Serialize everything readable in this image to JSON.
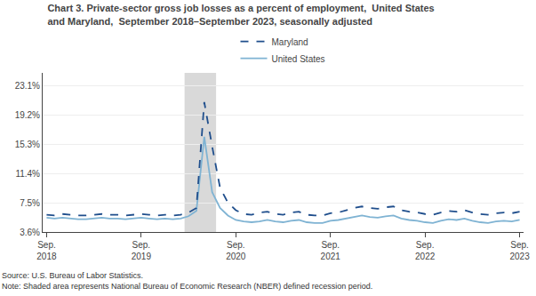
{
  "chart_data": {
    "type": "line",
    "title": "Chart 3. Private-sector gross job losses as a percent of employment,  United States\nand Maryland,  September 2018–September 2023, seasonally adjusted",
    "annotations": [
      "Source: U.S. Bureau of Labor Statistics.",
      "Note: Shaded area represents National Bureau of Economic Research (NBER) defined recession period."
    ],
    "categories": [
      "Sep.\n2018",
      null,
      null,
      null,
      null,
      null,
      null,
      null,
      null,
      null,
      null,
      null,
      "Sep.\n2019",
      null,
      null,
      null,
      null,
      null,
      null,
      null,
      null,
      null,
      null,
      null,
      "Sep.\n2020",
      null,
      null,
      null,
      null,
      null,
      null,
      null,
      null,
      null,
      null,
      null,
      "Sep.\n2021",
      null,
      null,
      null,
      null,
      null,
      null,
      null,
      null,
      null,
      null,
      null,
      "Sep.\n2022",
      null,
      null,
      null,
      null,
      null,
      null,
      null,
      null,
      null,
      null,
      null,
      "Sep.\n2023"
    ],
    "xlim": [
      -0.5,
      60.5
    ],
    "series": [
      {
        "name": "United States",
        "color": "#7fb3d3",
        "line_style": "solid",
        "values": [
          5.5,
          5.4,
          5.5,
          5.4,
          5.3,
          5.3,
          5.4,
          5.5,
          5.4,
          5.4,
          5.3,
          5.4,
          5.5,
          5.4,
          5.3,
          5.4,
          5.3,
          5.4,
          5.7,
          6.4,
          16.3,
          8.9,
          6.8,
          5.8,
          5.2,
          5.0,
          4.9,
          5.0,
          5.2,
          5.0,
          4.9,
          5.1,
          5.2,
          4.9,
          4.8,
          4.8,
          5.1,
          5.2,
          5.4,
          5.6,
          5.8,
          5.6,
          5.5,
          5.7,
          5.8,
          5.4,
          5.2,
          5.1,
          4.9,
          4.8,
          5.1,
          5.3,
          5.2,
          5.4,
          5.1,
          4.9,
          4.8,
          5.0,
          5.1,
          5.0,
          5.2
        ]
      },
      {
        "name": "Maryland",
        "color": "#1f4e8c",
        "line_style": "dashed",
        "values": [
          5.9,
          5.8,
          6.0,
          5.9,
          5.8,
          5.8,
          5.9,
          6.0,
          5.9,
          5.9,
          5.8,
          5.9,
          6.0,
          5.9,
          5.8,
          5.9,
          5.8,
          5.9,
          6.2,
          6.8,
          20.9,
          15.0,
          9.5,
          7.5,
          6.5,
          6.0,
          5.9,
          6.2,
          6.3,
          6.0,
          5.9,
          6.2,
          6.3,
          5.9,
          5.8,
          5.8,
          6.1,
          6.2,
          6.5,
          6.8,
          7.0,
          6.8,
          6.7,
          6.9,
          7.0,
          6.5,
          6.3,
          6.2,
          6.0,
          5.9,
          6.2,
          6.4,
          6.3,
          6.5,
          6.2,
          6.0,
          5.9,
          6.1,
          6.2,
          6.1,
          6.3
        ]
      }
    ],
    "ylim": [
      3.6,
      24.8
    ],
    "yticks": [
      {
        "value": 3.6,
        "label": "3.6%"
      },
      {
        "value": 7.5,
        "label": "7.5%"
      },
      {
        "value": 11.4,
        "label": "11.4%"
      },
      {
        "value": 15.3,
        "label": "15.3%"
      },
      {
        "value": 19.2,
        "label": "19.2%"
      },
      {
        "value": 23.1,
        "label": "23.1%"
      }
    ],
    "shaded": {
      "from": 17.5,
      "to": 21.5,
      "color": "#d9d9d9"
    },
    "grid": "y",
    "legend": "top"
  }
}
